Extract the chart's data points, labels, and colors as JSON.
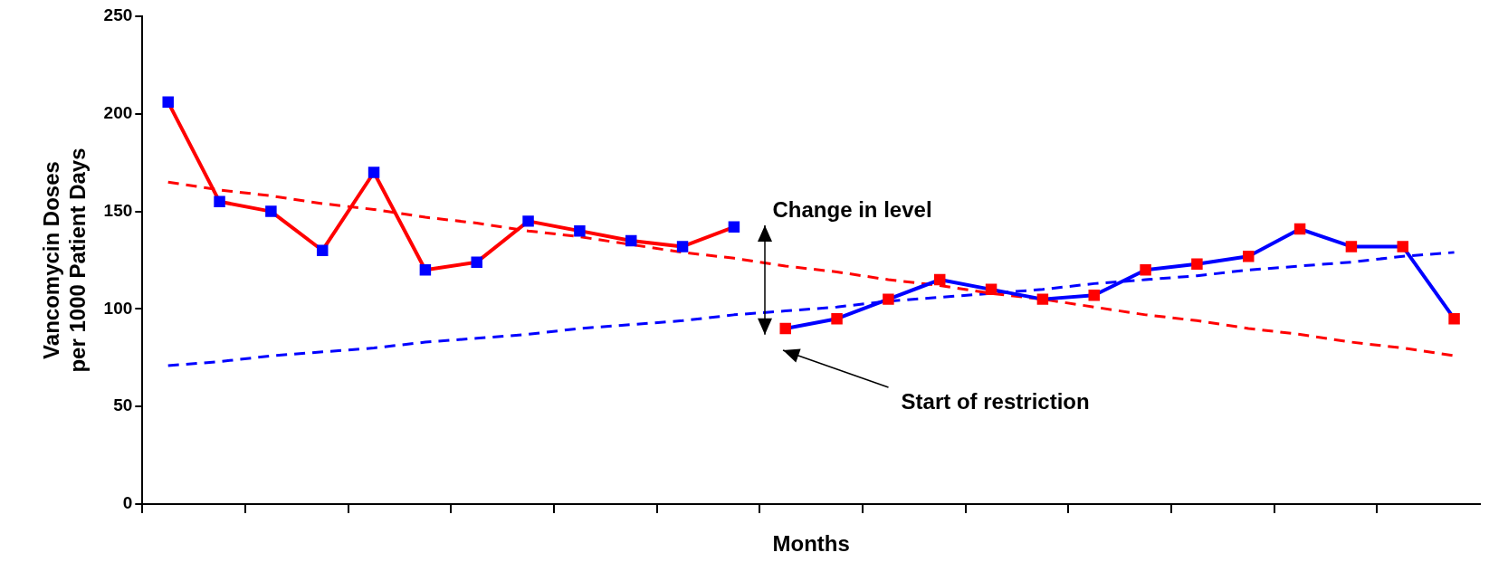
{
  "chart_data": {
    "type": "line",
    "xlabel": "Months",
    "ylabel": "Vancomycin Doses\nper 1000 Patient Days",
    "categories": [
      null,
      null,
      null,
      null,
      null,
      null,
      null,
      null,
      null,
      null,
      null,
      null,
      null,
      null,
      null,
      null,
      null,
      null,
      null,
      null,
      null,
      null,
      null,
      null,
      null,
      null
    ],
    "series": [
      {
        "color": "#ff0000",
        "colors": [
          "#0000ff",
          "#0000ff",
          "#0000ff",
          "#0000ff",
          "#0000ff",
          "#0000ff",
          "#0000ff",
          "#0000ff",
          "#0000ff",
          "#0000ff",
          "#0000ff",
          "#0000ff",
          null,
          null,
          null,
          null,
          null,
          null,
          null,
          null,
          null,
          null,
          null,
          null,
          null,
          null
        ],
        "marker": "square",
        "line_style": "solid",
        "values": [
          206,
          155,
          150,
          130,
          170,
          120,
          124,
          145,
          140,
          135,
          132,
          142,
          null,
          null,
          null,
          null,
          null,
          null,
          null,
          null,
          null,
          null,
          null,
          null,
          null,
          null
        ]
      },
      {
        "color": "#0000ff",
        "colors": [
          null,
          null,
          null,
          null,
          null,
          null,
          null,
          null,
          null,
          null,
          null,
          null,
          "#ff0000",
          "#ff0000",
          "#ff0000",
          "#ff0000",
          "#ff0000",
          "#ff0000",
          "#ff0000",
          "#ff0000",
          "#ff0000",
          "#ff0000",
          "#ff0000",
          "#ff0000",
          "#ff0000",
          "#ff0000"
        ],
        "marker": "square",
        "line_style": "solid",
        "values": [
          null,
          null,
          null,
          null,
          null,
          null,
          null,
          null,
          null,
          null,
          null,
          null,
          90,
          95,
          105,
          115,
          110,
          105,
          107,
          120,
          123,
          127,
          141,
          132,
          132,
          95
        ]
      },
      {
        "color": "#ff0000",
        "marker": "none",
        "line_style": "dashed",
        "values": [
          165,
          161,
          158,
          154,
          151,
          147,
          144,
          140,
          137,
          133,
          129,
          126,
          122,
          119,
          115,
          112,
          108,
          105,
          101,
          97,
          94,
          90,
          87,
          83,
          80,
          76
        ]
      },
      {
        "color": "#0000ff",
        "marker": "none",
        "line_style": "dashed",
        "values": [
          71,
          73,
          76,
          78,
          80,
          83,
          85,
          87,
          90,
          92,
          94,
          97,
          99,
          101,
          104,
          106,
          108,
          110,
          113,
          115,
          117,
          120,
          122,
          124,
          127,
          129
        ]
      }
    ],
    "ylim": [
      0,
      250
    ],
    "yticks": [
      0,
      50,
      100,
      150,
      200,
      250
    ],
    "grid": false,
    "legend": false,
    "annotations": [
      "Change in level",
      "Start of restriction"
    ]
  }
}
